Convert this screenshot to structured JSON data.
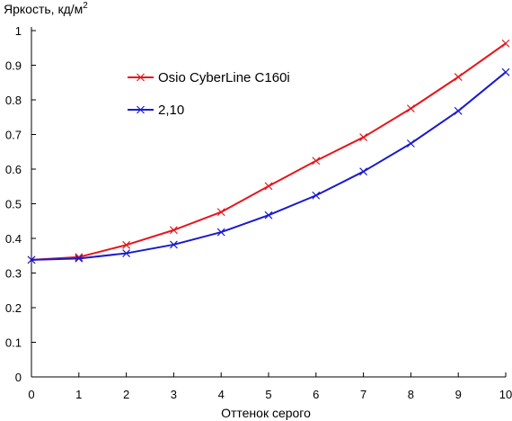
{
  "chart_data": {
    "type": "line",
    "ylabel_main": "Яркость, кд/м",
    "ylabel_sup": "2",
    "xlabel": "Оттенок серого",
    "x": [
      0,
      1,
      2,
      3,
      4,
      5,
      6,
      7,
      8,
      9,
      10
    ],
    "xlim": [
      0,
      10
    ],
    "ylim": [
      0,
      1
    ],
    "xticks": [
      "0",
      "1",
      "2",
      "3",
      "4",
      "5",
      "6",
      "7",
      "8",
      "9",
      "10"
    ],
    "yticks": [
      "0",
      "0.1",
      "0.2",
      "0.3",
      "0.4",
      "0.5",
      "0.6",
      "0.7",
      "0.8",
      "0.9",
      "1"
    ],
    "grid": false,
    "legend_position": "top-left",
    "series": [
      {
        "name": "Osio CyberLine C160i",
        "color": "#e8141b",
        "marker": "x",
        "values": [
          0.338,
          0.346,
          0.381,
          0.424,
          0.476,
          0.551,
          0.624,
          0.692,
          0.775,
          0.866,
          0.963
        ]
      },
      {
        "name": "2,10",
        "color": "#1a1acc",
        "marker": "x",
        "values": [
          0.338,
          0.342,
          0.357,
          0.382,
          0.418,
          0.467,
          0.524,
          0.593,
          0.674,
          0.768,
          0.88
        ]
      }
    ]
  }
}
